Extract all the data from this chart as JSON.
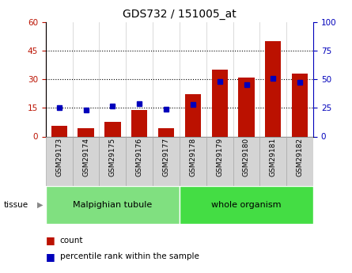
{
  "title": "GDS732 / 151005_at",
  "samples": [
    "GSM29173",
    "GSM29174",
    "GSM29175",
    "GSM29176",
    "GSM29177",
    "GSM29178",
    "GSM29179",
    "GSM29180",
    "GSM29181",
    "GSM29182"
  ],
  "count_values": [
    5.5,
    4.5,
    7.5,
    14.0,
    4.5,
    22.0,
    35.0,
    31.0,
    50.0,
    33.0
  ],
  "percentile_values": [
    25.0,
    23.0,
    26.5,
    28.5,
    24.0,
    28.0,
    48.0,
    45.0,
    51.0,
    47.0
  ],
  "tissue_groups": [
    {
      "label": "Malpighian tubule",
      "start": 0,
      "end": 5,
      "color": "#80e080"
    },
    {
      "label": "whole organism",
      "start": 5,
      "end": 10,
      "color": "#44dd44"
    }
  ],
  "ylim_left": [
    0,
    60
  ],
  "ylim_right": [
    0,
    100
  ],
  "yticks_left": [
    0,
    15,
    30,
    45,
    60
  ],
  "yticks_right": [
    0,
    25,
    50,
    75,
    100
  ],
  "bar_color": "#bb1100",
  "dot_color": "#0000bb",
  "gray_box_color": "#d4d4d4",
  "gray_box_edge": "#aaaaaa",
  "legend_items": [
    {
      "label": "count",
      "color": "#bb1100"
    },
    {
      "label": "percentile rank within the sample",
      "color": "#0000bb"
    }
  ]
}
